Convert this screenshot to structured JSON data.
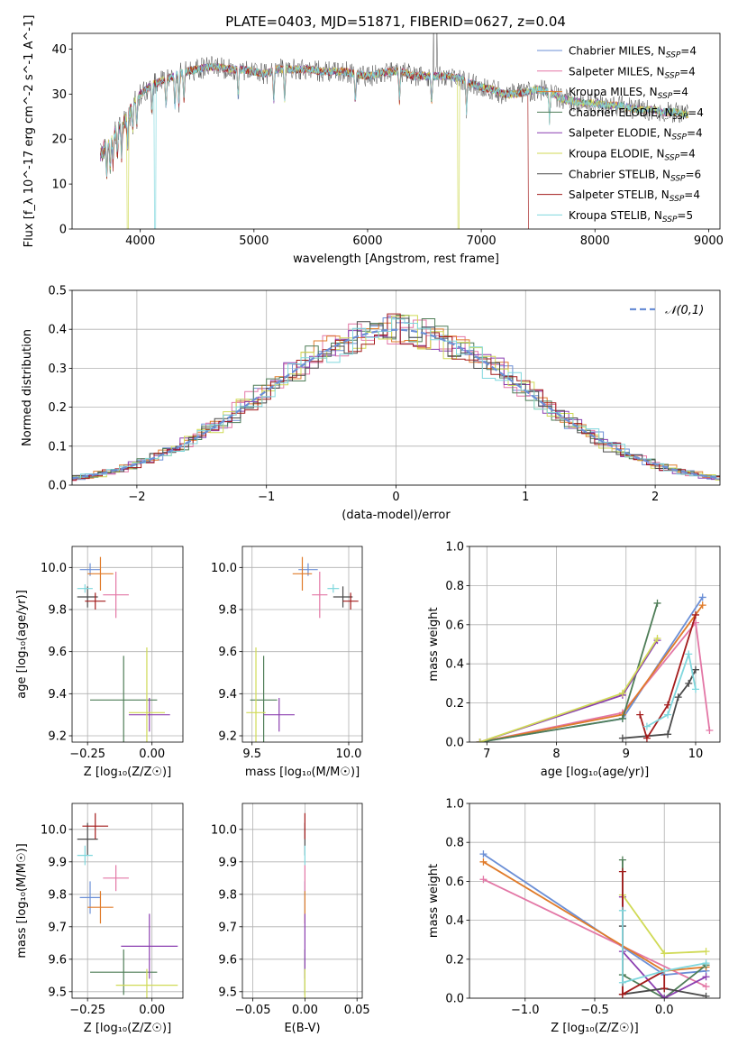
{
  "figure_title": "PLATE=0403, MJD=51871, FIBERID=0627, z=0.04",
  "colors": {
    "Chabrier MILES": "#6b8fd6",
    "Salpeter MILES": "#e377a6",
    "Kroupa MILES": "#e07b2a",
    "Chabrier ELODIE": "#4e7d57",
    "Salpeter ELODIE": "#8b3fb0",
    "Kroupa ELODIE": "#d0da56",
    "Chabrier STELIB": "#4a4a4a",
    "Salpeter STELIB": "#a31b1b",
    "Kroupa STELIB": "#7fd7dd"
  },
  "chart_data": [
    {
      "id": "spectrum",
      "type": "line",
      "title": "PLATE=0403, MJD=51871, FIBERID=0627, z=0.04",
      "xlabel": "wavelength [Angstrom, rest frame]",
      "ylabel": "Flux [f_λ 10^-17 erg cm^-2 s^-1 A^-1]",
      "xlim": [
        3400,
        9100
      ],
      "ylim": [
        0,
        43.5
      ],
      "xticks": [
        4000,
        5000,
        6000,
        7000,
        8000,
        9000
      ],
      "yticks": [
        0,
        10,
        20,
        30,
        40
      ],
      "legend_position": "top-right",
      "legend": [
        {
          "label": "Chabrier MILES, N",
          "sub": "SSP",
          "suffix": "=4"
        },
        {
          "label": "Salpeter MILES, N",
          "sub": "SSP",
          "suffix": "=4"
        },
        {
          "label": "Kroupa MILES, N",
          "sub": "SSP",
          "suffix": "=4"
        },
        {
          "label": "Chabrier ELODIE, N",
          "sub": "SSP",
          "suffix": "=4"
        },
        {
          "label": "Salpeter ELODIE, N",
          "sub": "SSP",
          "suffix": "=4"
        },
        {
          "label": "Kroupa ELODIE, N",
          "sub": "SSP",
          "suffix": "=4"
        },
        {
          "label": "Chabrier STELIB, N",
          "sub": "SSP",
          "suffix": "=6"
        },
        {
          "label": "Salpeter STELIB, N",
          "sub": "SSP",
          "suffix": "=4"
        },
        {
          "label": "Kroupa STELIB, N",
          "sub": "SSP",
          "suffix": "=5"
        }
      ],
      "continuum": [
        [
          3650,
          18
        ],
        [
          3700,
          20
        ],
        [
          3750,
          22
        ],
        [
          3800,
          24
        ],
        [
          3850,
          25
        ],
        [
          3900,
          27
        ],
        [
          3950,
          28.5
        ],
        [
          4000,
          30
        ],
        [
          4100,
          32
        ],
        [
          4200,
          33
        ],
        [
          4300,
          34
        ],
        [
          4400,
          35
        ],
        [
          4500,
          35.5
        ],
        [
          4600,
          36
        ],
        [
          4700,
          36
        ],
        [
          4800,
          35.5
        ],
        [
          4900,
          35.5
        ],
        [
          5000,
          35
        ],
        [
          5100,
          34.5
        ],
        [
          5200,
          35.5
        ],
        [
          5300,
          35.5
        ],
        [
          5400,
          35.5
        ],
        [
          5500,
          35.5
        ],
        [
          5600,
          35
        ],
        [
          5700,
          35
        ],
        [
          5800,
          35
        ],
        [
          5900,
          34.5
        ],
        [
          6000,
          34
        ],
        [
          6100,
          34.5
        ],
        [
          6200,
          35
        ],
        [
          6300,
          35
        ],
        [
          6400,
          34
        ],
        [
          6500,
          34
        ],
        [
          6600,
          34
        ],
        [
          6700,
          34
        ],
        [
          6800,
          33.5
        ],
        [
          6900,
          32.5
        ],
        [
          7000,
          31.5
        ],
        [
          7100,
          31
        ],
        [
          7200,
          30
        ],
        [
          7300,
          30
        ],
        [
          7400,
          30.5
        ],
        [
          7500,
          31
        ],
        [
          7600,
          30.5
        ],
        [
          7700,
          29
        ],
        [
          7800,
          28.5
        ],
        [
          7900,
          28
        ],
        [
          8000,
          28
        ],
        [
          8100,
          27.5
        ],
        [
          8200,
          27.5
        ],
        [
          8300,
          27
        ],
        [
          8400,
          26.5
        ],
        [
          8500,
          26.5
        ],
        [
          8600,
          26
        ],
        [
          8700,
          26
        ],
        [
          8800,
          25.5
        ]
      ],
      "absorption_lines": [
        3705,
        3735,
        3760,
        3798,
        3835,
        3889,
        3934,
        3969,
        4102,
        4227,
        4305,
        4340,
        4384,
        4861,
        5175,
        5270,
        5892,
        6280,
        6563,
        6870,
        7600
      ],
      "dropouts": [
        {
          "series": "Kroupa ELODIE",
          "x": [
            3890,
            6800
          ]
        },
        {
          "series": "Kroupa STELIB",
          "x": [
            4130
          ]
        },
        {
          "series": "Salpeter STELIB",
          "x": [
            7420
          ]
        }
      ],
      "spikes": [
        [
          6580,
          43
        ],
        [
          6610,
          43
        ]
      ]
    },
    {
      "id": "residual_hist",
      "type": "step",
      "xlabel": "(data-model)/error",
      "ylabel": "Normed distribution",
      "xlim": [
        -2.5,
        2.5
      ],
      "ylim": [
        0,
        0.5
      ],
      "xticks": [
        -2,
        -1,
        0,
        1,
        2
      ],
      "xticklabels": [
        "−2",
        "−1",
        "0",
        "1",
        "2"
      ],
      "yticks": [
        0,
        0.1,
        0.2,
        0.3,
        0.4,
        0.5
      ],
      "yticklabels": [
        "0.0",
        "0.1",
        "0.2",
        "0.3",
        "0.4",
        "0.5"
      ],
      "bin_width": 0.1,
      "reference_curve": {
        "name": "𝒩(0,1)",
        "color": "#6b8fd6",
        "style": "dashed"
      },
      "legend_position": "top-right"
    },
    {
      "id": "age_vs_Z",
      "type": "errorbar",
      "xlabel": "Z [log₁₀(Z/Z☉)]",
      "ylabel": "age  [log₁₀(age/yr)]",
      "xlim": [
        -0.31,
        0.12
      ],
      "ylim": [
        9.17,
        10.1
      ],
      "xticks": [
        -0.25,
        0.0
      ],
      "xticklabels": [
        "−0.25",
        "0.00"
      ],
      "yticks": [
        9.2,
        9.4,
        9.6,
        9.8,
        10.0
      ],
      "yticklabels": [
        "9.2",
        "9.4",
        "9.6",
        "9.8",
        "10.0"
      ],
      "points": [
        {
          "series": "Chabrier MILES",
          "x": -0.24,
          "xerr": 0.04,
          "y": 9.99,
          "yerr": 0.03
        },
        {
          "series": "Salpeter MILES",
          "x": -0.14,
          "xerr": 0.05,
          "y": 9.87,
          "yerr": 0.11
        },
        {
          "series": "Kroupa MILES",
          "x": -0.2,
          "xerr": 0.05,
          "y": 9.97,
          "yerr": 0.08
        },
        {
          "series": "Chabrier ELODIE",
          "x": -0.11,
          "xerr": 0.13,
          "y": 9.37,
          "yerr": 0.21
        },
        {
          "series": "Salpeter ELODIE",
          "x": -0.01,
          "xerr": 0.08,
          "y": 9.3,
          "yerr": 0.08
        },
        {
          "series": "Kroupa ELODIE",
          "x": -0.02,
          "xerr": 0.07,
          "y": 9.31,
          "yerr": 0.31
        },
        {
          "series": "Chabrier STELIB",
          "x": -0.25,
          "xerr": 0.04,
          "y": 9.86,
          "yerr": 0.05
        },
        {
          "series": "Salpeter STELIB",
          "x": -0.22,
          "xerr": 0.04,
          "y": 9.84,
          "yerr": 0.04
        },
        {
          "series": "Kroupa STELIB",
          "x": -0.26,
          "xerr": 0.03,
          "y": 9.9,
          "yerr": 0.02
        }
      ]
    },
    {
      "id": "age_vs_mass",
      "type": "errorbar",
      "xlabel": "mass [log₁₀(M/M☉)]",
      "ylabel": "",
      "xlim": [
        9.45,
        10.07
      ],
      "ylim": [
        9.17,
        10.1
      ],
      "xticks": [
        9.5,
        10.0
      ],
      "xticklabels": [
        "9.5",
        "10.0"
      ],
      "yticks": [
        9.2,
        9.4,
        9.6,
        9.8,
        10.0
      ],
      "yticklabels": [
        "9.2",
        "9.4",
        "9.6",
        "9.8",
        "10.0"
      ],
      "points": [
        {
          "series": "Chabrier MILES",
          "x": 9.79,
          "xerr": 0.05,
          "y": 9.99,
          "yerr": 0.03
        },
        {
          "series": "Salpeter MILES",
          "x": 9.85,
          "xerr": 0.04,
          "y": 9.87,
          "yerr": 0.11
        },
        {
          "series": "Kroupa MILES",
          "x": 9.76,
          "xerr": 0.05,
          "y": 9.97,
          "yerr": 0.08
        },
        {
          "series": "Chabrier ELODIE",
          "x": 9.56,
          "xerr": 0.07,
          "y": 9.37,
          "yerr": 0.21
        },
        {
          "series": "Salpeter ELODIE",
          "x": 9.64,
          "xerr": 0.08,
          "y": 9.3,
          "yerr": 0.08
        },
        {
          "series": "Kroupa ELODIE",
          "x": 9.52,
          "xerr": 0.05,
          "y": 9.31,
          "yerr": 0.31
        },
        {
          "series": "Chabrier STELIB",
          "x": 9.97,
          "xerr": 0.05,
          "y": 9.86,
          "yerr": 0.05
        },
        {
          "series": "Salpeter STELIB",
          "x": 10.01,
          "xerr": 0.04,
          "y": 9.84,
          "yerr": 0.04
        },
        {
          "series": "Kroupa STELIB",
          "x": 9.92,
          "xerr": 0.03,
          "y": 9.9,
          "yerr": 0.02
        }
      ]
    },
    {
      "id": "mass_weight_vs_age",
      "type": "line",
      "xlabel": "age  [log₁₀(age/yr)]",
      "ylabel": "mass weight",
      "xlim": [
        6.75,
        10.35
      ],
      "ylim": [
        0,
        1.0
      ],
      "xticks": [
        7,
        8,
        9,
        10
      ],
      "xticklabels": [
        "7",
        "8",
        "9",
        "10"
      ],
      "yticks": [
        0.0,
        0.2,
        0.4,
        0.6,
        0.8,
        1.0
      ],
      "yticklabels": [
        "0.0",
        "0.2",
        "0.4",
        "0.6",
        "0.8",
        "1.0"
      ],
      "series": [
        {
          "name": "Chabrier MILES",
          "x": [
            6.9,
            8.95,
            10.1
          ],
          "y": [
            0.0,
            0.12,
            0.74
          ]
        },
        {
          "name": "Salpeter MILES",
          "x": [
            6.9,
            8.95,
            10.0,
            10.2
          ],
          "y": [
            0.0,
            0.15,
            0.61,
            0.06
          ]
        },
        {
          "name": "Kroupa MILES",
          "x": [
            6.9,
            8.95,
            10.1
          ],
          "y": [
            0.0,
            0.14,
            0.7
          ]
        },
        {
          "name": "Chabrier ELODIE",
          "x": [
            6.9,
            8.95,
            9.45
          ],
          "y": [
            0.0,
            0.12,
            0.71
          ]
        },
        {
          "name": "Salpeter ELODIE",
          "x": [
            6.9,
            8.95,
            9.45
          ],
          "y": [
            0.0,
            0.24,
            0.52
          ]
        },
        {
          "name": "Kroupa ELODIE",
          "x": [
            6.9,
            8.95,
            9.45
          ],
          "y": [
            0.0,
            0.25,
            0.53
          ]
        },
        {
          "name": "Chabrier STELIB",
          "x": [
            8.95,
            9.6,
            9.75,
            9.9,
            10.0
          ],
          "y": [
            0.02,
            0.04,
            0.23,
            0.3,
            0.37
          ]
        },
        {
          "name": "Salpeter STELIB",
          "x": [
            9.2,
            9.3,
            9.6,
            10.0
          ],
          "y": [
            0.14,
            0.02,
            0.19,
            0.65
          ]
        },
        {
          "name": "Kroupa STELIB",
          "x": [
            9.3,
            9.6,
            9.9,
            10.0
          ],
          "y": [
            0.08,
            0.14,
            0.45,
            0.27
          ]
        }
      ]
    },
    {
      "id": "mass_vs_Z",
      "type": "errorbar",
      "xlabel": "Z [log₁₀(Z/Z☉)]",
      "ylabel": "mass [log₁₀(M/M☉)]",
      "xlim": [
        -0.31,
        0.12
      ],
      "ylim": [
        9.48,
        10.08
      ],
      "xticks": [
        -0.25,
        0.0
      ],
      "xticklabels": [
        "−0.25",
        "0.00"
      ],
      "yticks": [
        9.5,
        9.6,
        9.7,
        9.8,
        9.9,
        10.0
      ],
      "yticklabels": [
        "9.5",
        "9.6",
        "9.7",
        "9.8",
        "9.9",
        "10.0"
      ],
      "points": [
        {
          "series": "Chabrier MILES",
          "x": -0.24,
          "xerr": 0.04,
          "y": 9.79,
          "yerr": 0.05
        },
        {
          "series": "Salpeter MILES",
          "x": -0.14,
          "xerr": 0.05,
          "y": 9.85,
          "yerr": 0.04
        },
        {
          "series": "Kroupa MILES",
          "x": -0.2,
          "xerr": 0.05,
          "y": 9.76,
          "yerr": 0.05
        },
        {
          "series": "Chabrier ELODIE",
          "x": -0.11,
          "xerr": 0.13,
          "y": 9.56,
          "yerr": 0.07
        },
        {
          "series": "Salpeter ELODIE",
          "x": -0.01,
          "xerr": 0.11,
          "y": 9.64,
          "yerr": 0.1
        },
        {
          "series": "Kroupa ELODIE",
          "x": -0.02,
          "xerr": 0.12,
          "y": 9.52,
          "yerr": 0.05
        },
        {
          "series": "Chabrier STELIB",
          "x": -0.25,
          "xerr": 0.04,
          "y": 9.97,
          "yerr": 0.05
        },
        {
          "series": "Salpeter STELIB",
          "x": -0.22,
          "xerr": 0.05,
          "y": 10.01,
          "yerr": 0.04
        },
        {
          "series": "Kroupa STELIB",
          "x": -0.26,
          "xerr": 0.03,
          "y": 9.92,
          "yerr": 0.03
        }
      ]
    },
    {
      "id": "mass_vs_EBV",
      "type": "errorbar",
      "xlabel": "E(B-V)",
      "ylabel": "",
      "xlim": [
        -0.06,
        0.055
      ],
      "ylim": [
        9.48,
        10.08
      ],
      "xticks": [
        -0.05,
        0.0,
        0.05
      ],
      "xticklabels": [
        "−0.05",
        "0.00",
        "0.05"
      ],
      "yticks": [
        9.5,
        9.6,
        9.7,
        9.8,
        9.9,
        10.0
      ],
      "yticklabels": [
        "9.5",
        "9.6",
        "9.7",
        "9.8",
        "9.9",
        "10.0"
      ],
      "points": [
        {
          "series": "Chabrier MILES",
          "x": 0.0,
          "xerr": 0.0,
          "y": 9.79,
          "yerr": 0.05
        },
        {
          "series": "Salpeter MILES",
          "x": 0.0,
          "xerr": 0.0,
          "y": 9.85,
          "yerr": 0.04
        },
        {
          "series": "Kroupa MILES",
          "x": 0.0,
          "xerr": 0.0,
          "y": 9.76,
          "yerr": 0.05
        },
        {
          "series": "Chabrier ELODIE",
          "x": 0.0,
          "xerr": 0.0,
          "y": 9.56,
          "yerr": 0.07
        },
        {
          "series": "Salpeter ELODIE",
          "x": 0.0,
          "xerr": 0.0,
          "y": 9.64,
          "yerr": 0.1
        },
        {
          "series": "Kroupa ELODIE",
          "x": 0.0,
          "xerr": 0.0,
          "y": 9.52,
          "yerr": 0.05
        },
        {
          "series": "Chabrier STELIB",
          "x": 0.0,
          "xerr": 0.0,
          "y": 9.97,
          "yerr": 0.05
        },
        {
          "series": "Salpeter STELIB",
          "x": 0.0,
          "xerr": 0.0,
          "y": 10.01,
          "yerr": 0.04
        },
        {
          "series": "Kroupa STELIB",
          "x": 0.0,
          "xerr": 0.0,
          "y": 9.92,
          "yerr": 0.03
        }
      ]
    },
    {
      "id": "mass_weight_vs_Z",
      "type": "line",
      "xlabel": "Z [log₁₀(Z/Z☉)]",
      "ylabel": "mass weight",
      "xlim": [
        -1.4,
        0.4
      ],
      "ylim": [
        0,
        1.0
      ],
      "xticks": [
        -1.0,
        -0.5,
        0.0
      ],
      "xticklabels": [
        "−1.0",
        "−0.5",
        "0.0"
      ],
      "yticks": [
        0.0,
        0.2,
        0.4,
        0.6,
        0.8,
        1.0
      ],
      "yticklabels": [
        "0.0",
        "0.2",
        "0.4",
        "0.6",
        "0.8",
        "1.0"
      ],
      "series": [
        {
          "name": "Chabrier MILES",
          "x": [
            -1.3,
            0.0,
            0.3
          ],
          "y": [
            0.74,
            0.12,
            0.14
          ]
        },
        {
          "name": "Salpeter MILES",
          "x": [
            -1.3,
            0.3
          ],
          "y": [
            0.61,
            0.06
          ]
        },
        {
          "name": "Kroupa MILES",
          "x": [
            -1.3,
            0.0,
            0.3
          ],
          "y": [
            0.7,
            0.14,
            0.16
          ]
        },
        {
          "name": "Chabrier ELODIE",
          "x": [
            -0.3,
            -0.3,
            0.0,
            0.3
          ],
          "y": [
            0.71,
            0.12,
            0.0,
            0.17
          ]
        },
        {
          "name": "Salpeter ELODIE",
          "x": [
            -0.3,
            -0.3,
            0.0,
            0.3
          ],
          "y": [
            0.52,
            0.24,
            0.0,
            0.11
          ]
        },
        {
          "name": "Kroupa ELODIE",
          "x": [
            -0.3,
            0.0,
            0.3
          ],
          "y": [
            0.53,
            0.23,
            0.24
          ]
        },
        {
          "name": "Chabrier STELIB",
          "x": [
            -0.3,
            -0.3,
            0.0,
            0.3
          ],
          "y": [
            0.37,
            0.02,
            0.05,
            0.01
          ]
        },
        {
          "name": "Salpeter STELIB",
          "x": [
            -0.3,
            -0.3,
            0.0,
            0.0
          ],
          "y": [
            0.65,
            0.02,
            0.14,
            0.05
          ]
        },
        {
          "name": "Kroupa STELIB",
          "x": [
            -0.3,
            -0.3,
            0.0,
            0.3
          ],
          "y": [
            0.45,
            0.08,
            0.14,
            0.18
          ]
        }
      ]
    }
  ]
}
